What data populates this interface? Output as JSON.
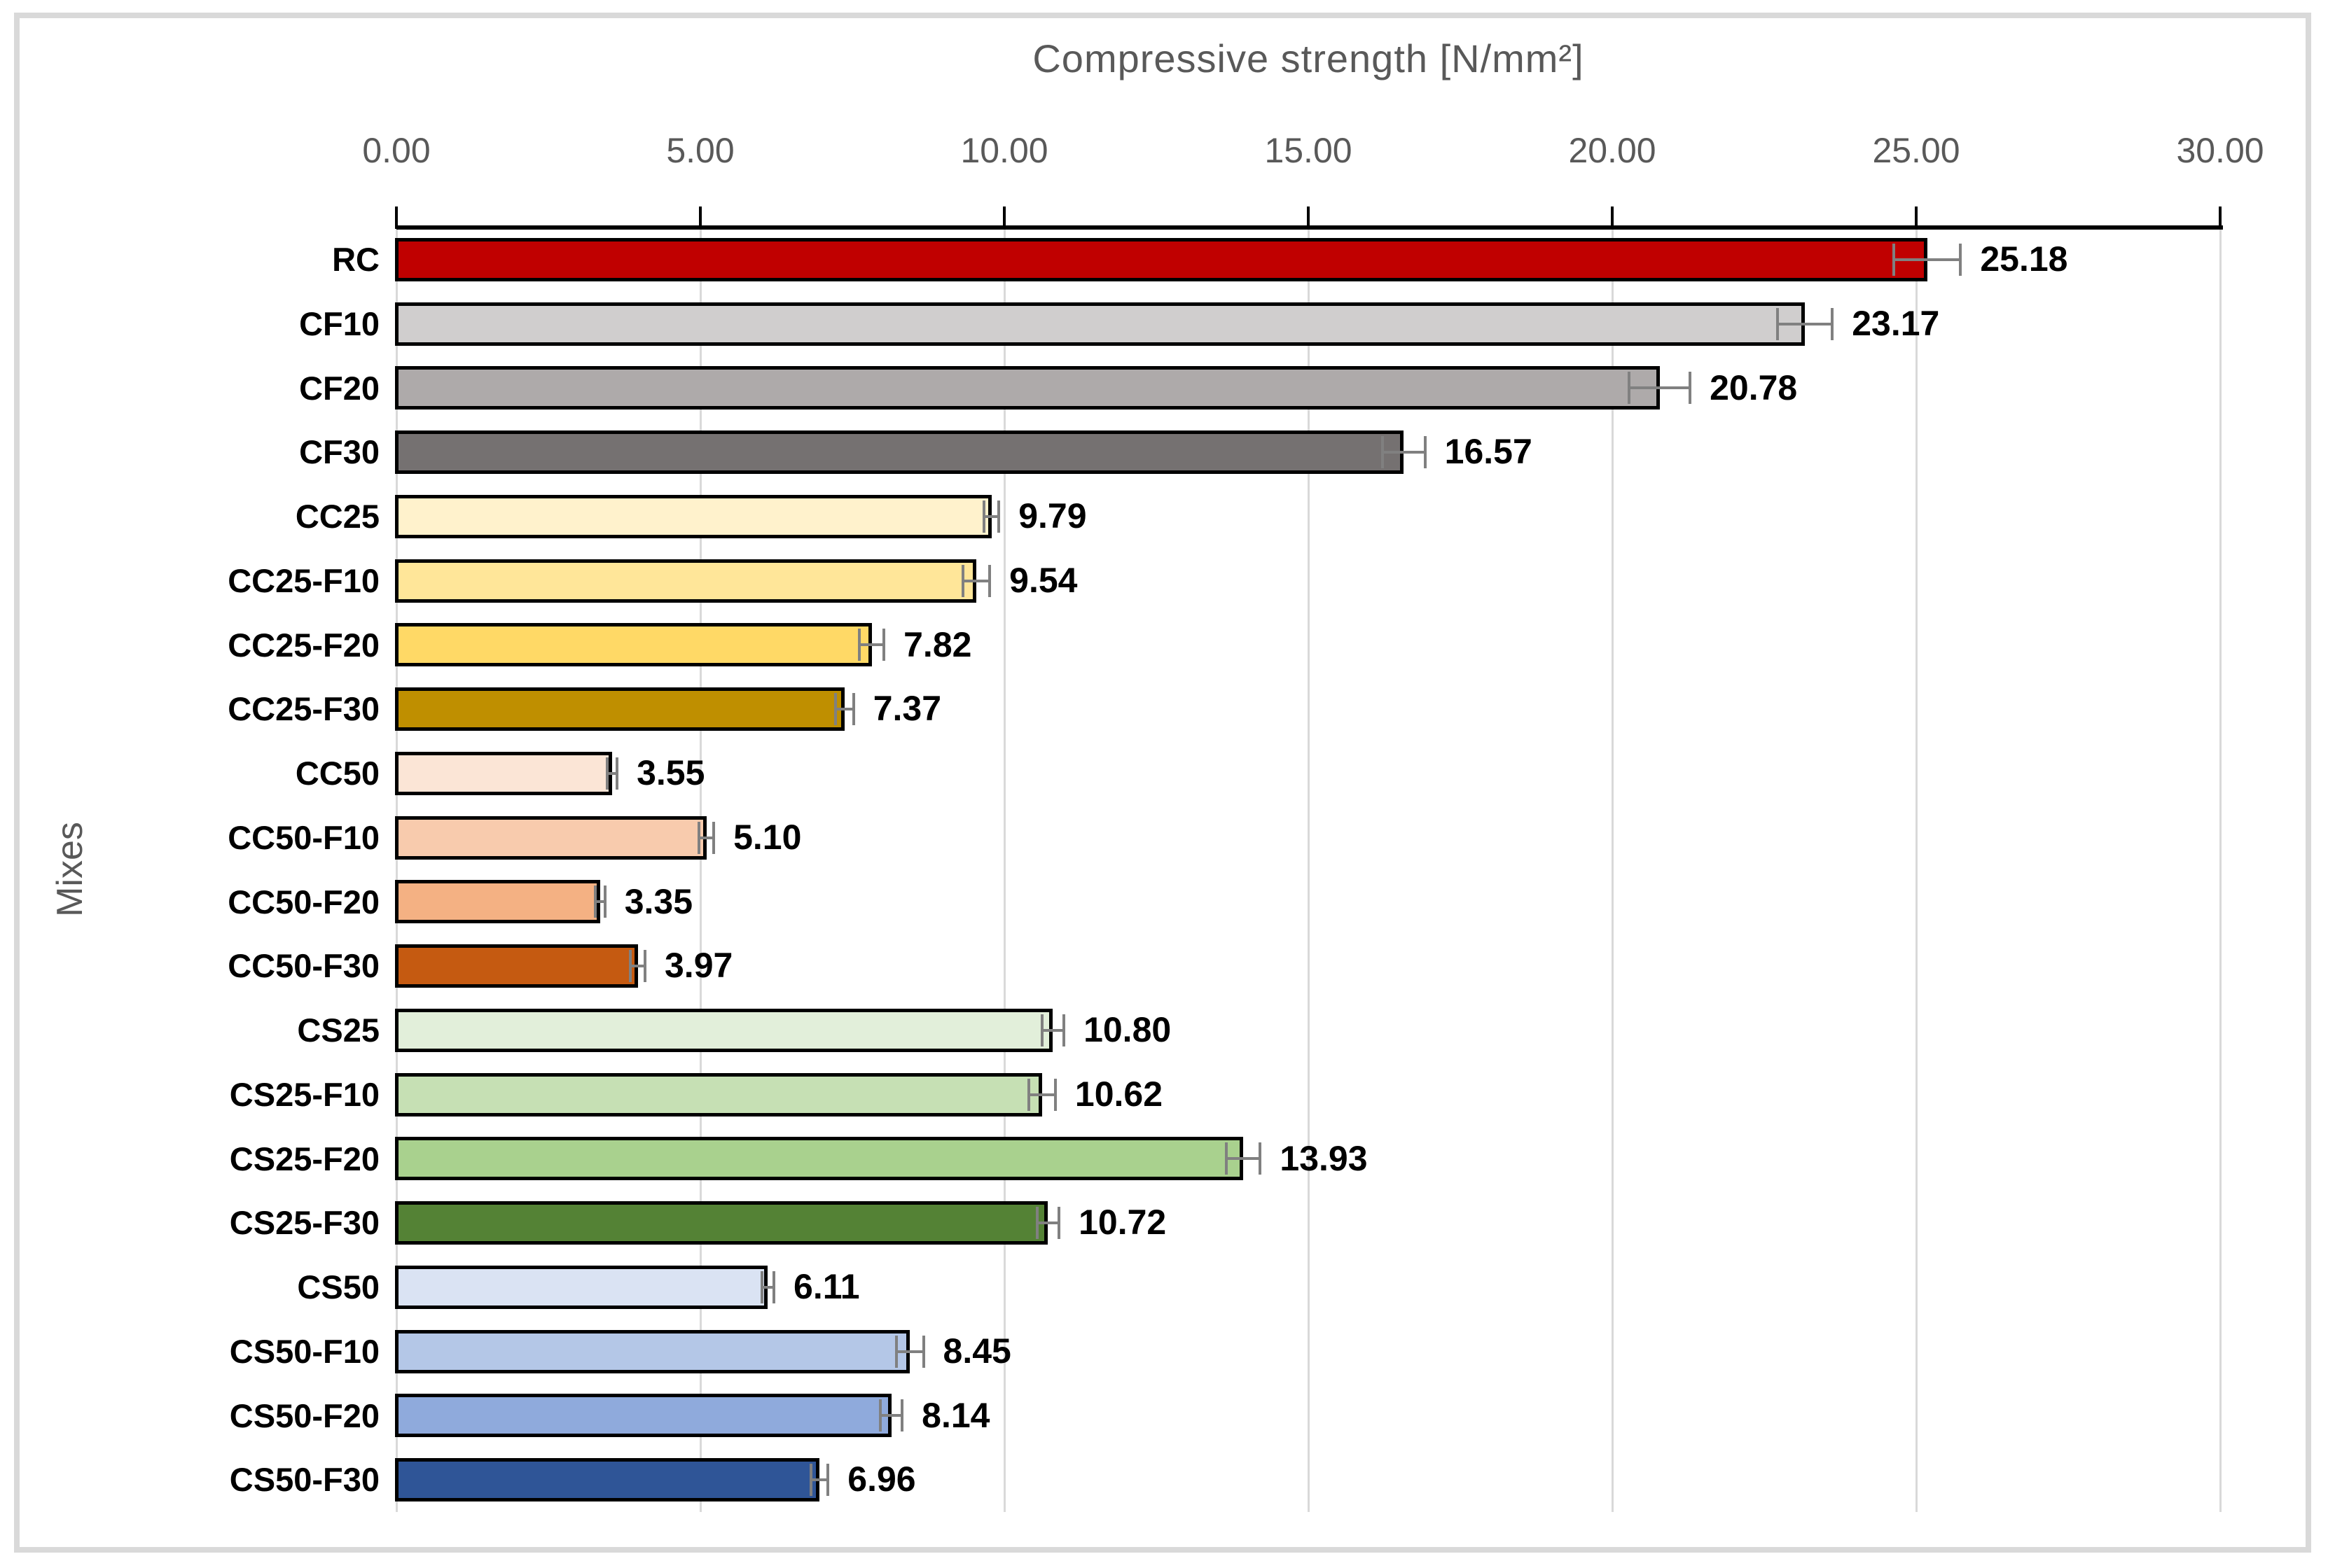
{
  "frame": {
    "border_color": "#D9D9D9",
    "background": "#FFFFFF"
  },
  "chart_data": {
    "type": "bar",
    "orientation": "horizontal",
    "title": "Compressive strength [N/mm²]",
    "ylabel": "Mixes",
    "x_ticks": [
      "0.00",
      "5.00",
      "10.00",
      "15.00",
      "20.00",
      "25.00",
      "30.00"
    ],
    "xlim": [
      0,
      30
    ],
    "grid": true,
    "legend": "none",
    "categories": [
      "RC",
      "CF10",
      "CF20",
      "CF30",
      "CC25",
      "CC25-F10",
      "CC25-F20",
      "CC25-F30",
      "CC50",
      "CC50-F10",
      "CC50-F20",
      "CC50-F30",
      "CS25",
      "CS25-F10",
      "CS25-F20",
      "CS25-F30",
      "CS50",
      "CS50-F10",
      "CS50-F20",
      "CS50-F30"
    ],
    "values": [
      25.18,
      23.17,
      20.78,
      16.57,
      9.79,
      9.54,
      7.82,
      7.37,
      3.55,
      5.1,
      3.35,
      3.97,
      10.8,
      10.62,
      13.93,
      10.72,
      6.11,
      8.45,
      8.14,
      6.96
    ],
    "value_labels": [
      "25.18",
      "23.17",
      "20.78",
      "16.57",
      "9.79",
      "9.54",
      "7.82",
      "7.37",
      "3.55",
      "5.10",
      "3.35",
      "3.97",
      "10.80",
      "10.62",
      "13.93",
      "10.72",
      "6.11",
      "8.45",
      "8.14",
      "6.96"
    ],
    "errors": [
      0.55,
      0.45,
      0.5,
      0.35,
      0.12,
      0.22,
      0.2,
      0.15,
      0.08,
      0.12,
      0.08,
      0.12,
      0.18,
      0.22,
      0.28,
      0.18,
      0.1,
      0.22,
      0.18,
      0.14
    ],
    "bar_colors": [
      "#C00000",
      "#D0CECE",
      "#AEAAAA",
      "#757171",
      "#FFF2CC",
      "#FFE699",
      "#FFD966",
      "#BF8F00",
      "#FBE5D6",
      "#F8CBAD",
      "#F4B183",
      "#C55A11",
      "#E2EFDA",
      "#C6E0B4",
      "#A9D18E",
      "#548235",
      "#DAE3F3",
      "#B4C7E7",
      "#8FAADC",
      "#2F5597"
    ],
    "bar_border_color": "#000000",
    "error_bar_color": "#808080",
    "gridline_color": "#D9D9D9",
    "axis_line_color": "#000000",
    "text_colors": {
      "axis_title": "#595959",
      "tick_labels": "#595959",
      "category_labels": "#000000",
      "value_labels": "#000000"
    }
  }
}
